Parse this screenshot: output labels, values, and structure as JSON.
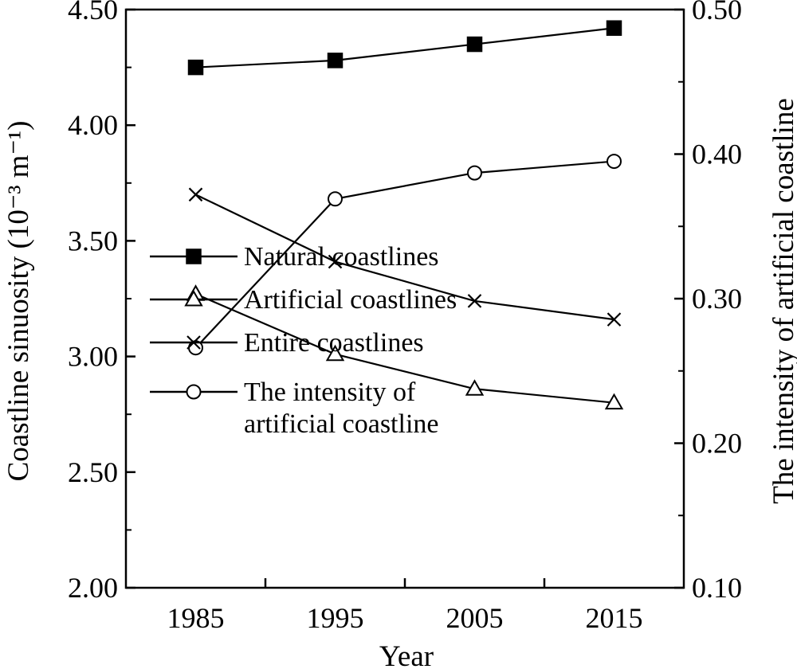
{
  "chart_data": {
    "type": "line",
    "title": "",
    "xlabel": "Year",
    "ylabel_left": "Coastline sinuosity (10⁻³ m⁻¹)",
    "ylabel_right": "The intensity of artificial coastline",
    "xlim": [
      1980,
      2020
    ],
    "ylim_left": [
      2.0,
      4.5
    ],
    "ylim_right": [
      0.1,
      0.5
    ],
    "x_ticks": [
      1985,
      1995,
      2005,
      2015
    ],
    "y_left_ticks": [
      "2.00",
      "2.50",
      "3.00",
      "3.50",
      "4.00",
      "4.50"
    ],
    "y_right_ticks": [
      "0.10",
      "0.20",
      "0.30",
      "0.40",
      "0.50"
    ],
    "grid": false,
    "legend_position": "bottom-left",
    "series": [
      {
        "name": "Natural coastlines",
        "axis": "left",
        "marker": "filled-square",
        "x": [
          1985,
          1995,
          2005,
          2015
        ],
        "values": [
          4.25,
          4.28,
          4.35,
          4.42
        ]
      },
      {
        "name": "Artificial coastlines",
        "axis": "left",
        "marker": "open-triangle",
        "x": [
          1985,
          1995,
          2005,
          2015
        ],
        "values": [
          3.27,
          3.01,
          2.86,
          2.8
        ]
      },
      {
        "name": "Entire coastlines",
        "axis": "left",
        "marker": "x",
        "x": [
          1985,
          1995,
          2005,
          2015
        ],
        "values": [
          3.7,
          3.41,
          3.24,
          3.16
        ]
      },
      {
        "name": "The intensity of artificial coastline",
        "axis": "right",
        "marker": "open-circle",
        "x": [
          1985,
          1995,
          2005,
          2015
        ],
        "values": [
          0.266,
          0.369,
          0.387,
          0.395
        ]
      }
    ],
    "legend": [
      {
        "lines": [
          "Natural coastlines"
        ],
        "marker": "filled-square"
      },
      {
        "lines": [
          "Artificial coastlines"
        ],
        "marker": "open-triangle"
      },
      {
        "lines": [
          "Entire coastlines"
        ],
        "marker": "x"
      },
      {
        "lines": [
          "The intensity of",
          "artificial coastline"
        ],
        "marker": "open-circle"
      }
    ]
  }
}
